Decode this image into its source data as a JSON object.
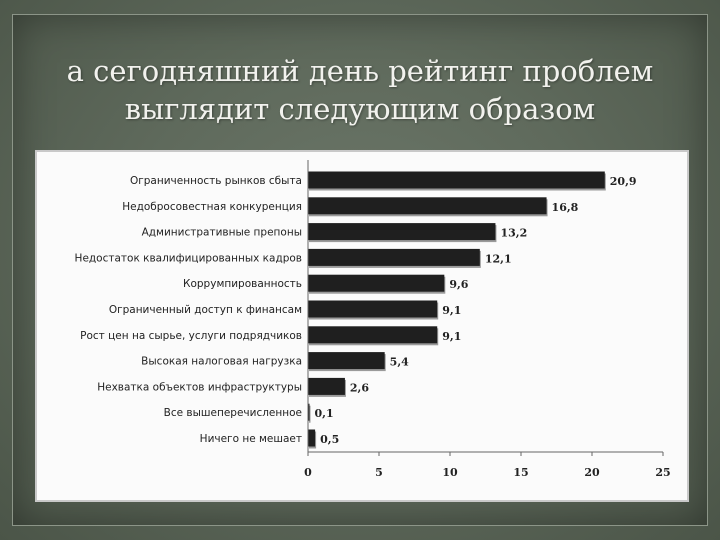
{
  "slide": {
    "title_line1": "а сегодняшний день рейтинг проблем",
    "title_line2": "выглядит следующим образом"
  },
  "chart_data": {
    "type": "bar",
    "orientation": "horizontal",
    "categories": [
      "Ограниченность рынков сбыта",
      "Недобросовестная конкуренция",
      "Административные препоны",
      "Недостаток квалифицированных кадров",
      "Коррумпированность",
      "Ограниченный доступ к финансам",
      "Рост цен на сырье, услуги подрядчиков",
      "Высокая налоговая нагрузка",
      "Нехватка объектов инфраструктуры",
      "Все вышеперечисленное",
      "Ничего не мешает"
    ],
    "values": [
      20.9,
      16.8,
      13.2,
      12.1,
      9.6,
      9.1,
      9.1,
      5.4,
      2.6,
      0.1,
      0.5
    ],
    "value_labels": [
      "20,9",
      "16,8",
      "13,2",
      "12,1",
      "9,6",
      "9,1",
      "9,1",
      "5,4",
      "2,6",
      "0,1",
      "0,5"
    ],
    "xlim": [
      0,
      25
    ],
    "xticks": [
      0,
      5,
      10,
      15,
      20,
      25
    ],
    "title": "",
    "xlabel": "",
    "ylabel": "",
    "grid": false,
    "legend": "none",
    "bar_color": "#1f1f1f"
  }
}
